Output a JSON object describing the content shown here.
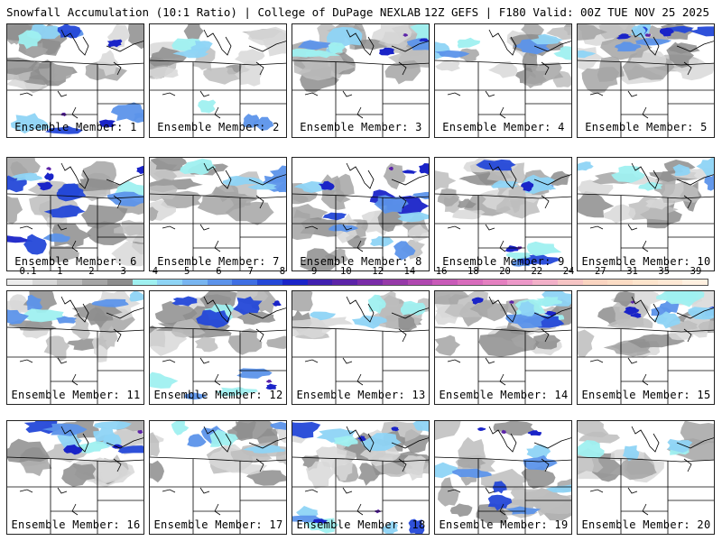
{
  "header": {
    "left_title": "Snowfall Accumulation (10:1 Ratio) | College of DuPage NEXLAB",
    "right_title": "12Z GEFS | F180 Valid: 00Z TUE NOV 25 2025"
  },
  "members": [
    {
      "label": "Ensemble Member: 1",
      "coverage": "heavy-north-light-south",
      "intensity": 3
    },
    {
      "label": "Ensemble Member: 2",
      "coverage": "light-north-band-south",
      "intensity": 2
    },
    {
      "label": "Ensemble Member: 3",
      "coverage": "north-band-strong",
      "intensity": 3
    },
    {
      "label": "Ensemble Member: 4",
      "coverage": "north-band-moderate",
      "intensity": 2
    },
    {
      "label": "Ensemble Member: 5",
      "coverage": "north-band-moderate",
      "intensity": 3
    },
    {
      "label": "Ensemble Member: 6",
      "coverage": "widespread-heavy",
      "intensity": 4
    },
    {
      "label": "Ensemble Member: 7",
      "coverage": "north-light",
      "intensity": 2
    },
    {
      "label": "Ensemble Member: 8",
      "coverage": "widespread-heavy",
      "intensity": 4
    },
    {
      "label": "Ensemble Member: 9",
      "coverage": "scattered-south",
      "intensity": 3
    },
    {
      "label": "Ensemble Member: 10",
      "coverage": "north-light",
      "intensity": 2
    },
    {
      "label": "Ensemble Member: 11",
      "coverage": "north-moderate",
      "intensity": 2
    },
    {
      "label": "Ensemble Member: 12",
      "coverage": "north-band-south",
      "intensity": 3
    },
    {
      "label": "Ensemble Member: 13",
      "coverage": "scattered-gray",
      "intensity": 1
    },
    {
      "label": "Ensemble Member: 14",
      "coverage": "east-moderate",
      "intensity": 3
    },
    {
      "label": "Ensemble Member: 15",
      "coverage": "north-east-heavy",
      "intensity": 3
    },
    {
      "label": "Ensemble Member: 16",
      "coverage": "north-band-strong",
      "intensity": 3
    },
    {
      "label": "Ensemble Member: 17",
      "coverage": "north-light",
      "intensity": 2
    },
    {
      "label": "Ensemble Member: 18",
      "coverage": "north-heavy-south",
      "intensity": 4
    },
    {
      "label": "Ensemble Member: 19",
      "coverage": "widespread-heavy",
      "intensity": 3
    },
    {
      "label": "Ensemble Member: 20",
      "coverage": "north-light",
      "intensity": 1
    }
  ],
  "colorbar": {
    "ticks": [
      "0.1",
      "1",
      "2",
      "3",
      "4",
      "5",
      "6",
      "7",
      "8",
      "9",
      "10",
      "12",
      "14",
      "16",
      "18",
      "20",
      "22",
      "24",
      "27",
      "31",
      "35",
      "39"
    ],
    "colors": [
      "#ececec",
      "#d8d8d8",
      "#bdbdbd",
      "#a5a5a5",
      "#8d8d8d",
      "#9ff0f0",
      "#8ed4f5",
      "#78b5f0",
      "#5c93ea",
      "#3f6fe3",
      "#2448d8",
      "#1a24c8",
      "#4020b0",
      "#5c24a8",
      "#7a2ca8",
      "#963aa8",
      "#b048b0",
      "#c85ab8",
      "#d86cbc",
      "#e480c0",
      "#ec98c8",
      "#f2b0c8",
      "#f6c4c4",
      "#fad4c0",
      "#fcdcc4",
      "#fde4cc",
      "#fee8d4",
      "#fff0e0"
    ]
  }
}
